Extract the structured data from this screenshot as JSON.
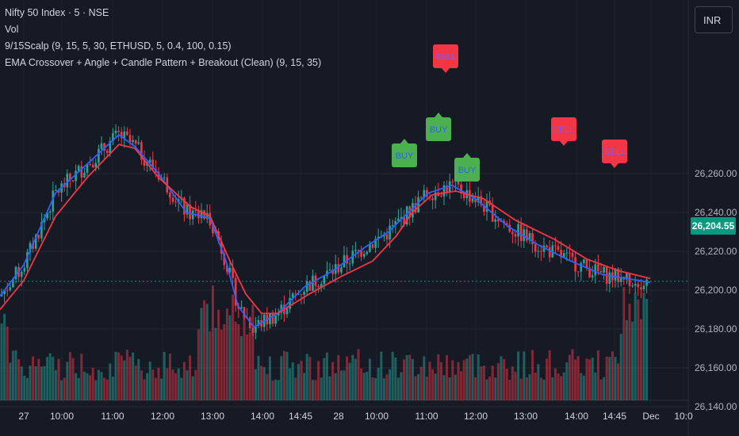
{
  "legend": {
    "symbol": "Nifty 50 Index · 5 · NSE",
    "volume": "Vol",
    "indicator1": "9/15Scalp (9, 15, 5, 30, ETHUSD, 5, 0.4, 100, 0.15)",
    "indicator2": "EMA Crossover + Angle + Candle Pattern + Breakout (Clean) (9, 15, 35)"
  },
  "currency": "INR",
  "last_price": "26,204.55",
  "colors": {
    "background": "#161a25",
    "up": "#26a69a",
    "down": "#f23645",
    "ema_fast": "#2962ff",
    "ema_slow": "#f23645",
    "buy_label": "#4caf50",
    "sell_label": "#f23645",
    "price_tag": "#089981"
  },
  "chart_data": {
    "type": "candlestick",
    "y_ticks": [
      "26,260.00",
      "26,240.00",
      "26,220.00",
      "26,200.00",
      "26,180.00",
      "26,160.00",
      "26,140.00"
    ],
    "x_ticks": [
      "27",
      "10:00",
      "11:00",
      "12:00",
      "13:00",
      "14:00",
      "14:45",
      "28",
      "10:00",
      "11:00",
      "12:00",
      "13:00",
      "14:00",
      "14:45",
      "Dec",
      "10:0"
    ],
    "ylim": [
      26137,
      26284
    ],
    "last_price": 26204.55,
    "series": [
      {
        "name": "EMA fast",
        "points": [
          [
            0,
            26197
          ],
          [
            30,
            26213
          ],
          [
            70,
            26250
          ],
          [
            110,
            26265
          ],
          [
            150,
            26280
          ],
          [
            170,
            26274
          ],
          [
            200,
            26260
          ],
          [
            235,
            26240
          ],
          [
            265,
            26237
          ],
          [
            285,
            26215
          ],
          [
            300,
            26192
          ],
          [
            320,
            26181
          ],
          [
            350,
            26188
          ],
          [
            385,
            26202
          ],
          [
            420,
            26210
          ],
          [
            460,
            26222
          ],
          [
            490,
            26230
          ],
          [
            510,
            26238
          ],
          [
            540,
            26250
          ],
          [
            570,
            26254
          ],
          [
            600,
            26247
          ],
          [
            640,
            26233
          ],
          [
            680,
            26223
          ],
          [
            720,
            26215
          ],
          [
            760,
            26208
          ],
          [
            820,
            26204
          ]
        ]
      },
      {
        "name": "EMA slow",
        "points": [
          [
            0,
            26190
          ],
          [
            30,
            26205
          ],
          [
            70,
            26238
          ],
          [
            110,
            26258
          ],
          [
            150,
            26275
          ],
          [
            170,
            26273
          ],
          [
            200,
            26258
          ],
          [
            240,
            26243
          ],
          [
            265,
            26238
          ],
          [
            290,
            26215
          ],
          [
            310,
            26198
          ],
          [
            330,
            26188
          ],
          [
            350,
            26188
          ],
          [
            390,
            26198
          ],
          [
            430,
            26207
          ],
          [
            470,
            26215
          ],
          [
            500,
            26228
          ],
          [
            520,
            26240
          ],
          [
            545,
            26249
          ],
          [
            575,
            26251
          ],
          [
            610,
            26247
          ],
          [
            650,
            26236
          ],
          [
            700,
            26226
          ],
          [
            740,
            26216
          ],
          [
            780,
            26210
          ],
          [
            820,
            26206
          ]
        ]
      }
    ],
    "signals": [
      {
        "label": "BUY",
        "x": 510,
        "type": "buy"
      },
      {
        "label": "BUY",
        "x": 553,
        "type": "buy"
      },
      {
        "label": "BUY",
        "x": 589,
        "type": "buy"
      },
      {
        "label": "SELL",
        "x": 562,
        "type": "sell"
      },
      {
        "label": "SELL",
        "x": 711,
        "type": "sell"
      },
      {
        "label": "SELL",
        "x": 775,
        "type": "sell"
      }
    ]
  }
}
